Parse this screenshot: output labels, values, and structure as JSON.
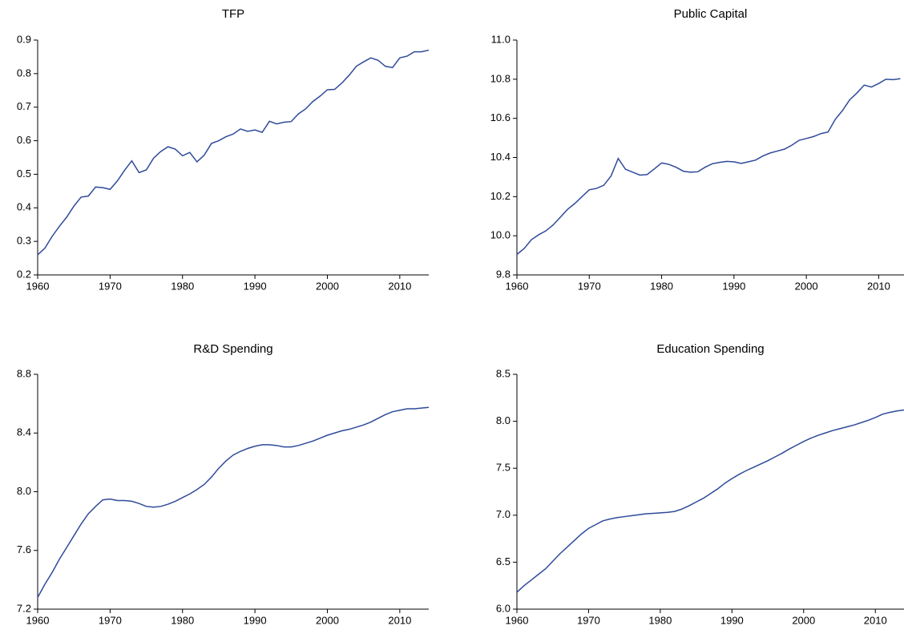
{
  "chart_data": [
    {
      "type": "line",
      "title": "TFP",
      "color": "#2f4a9a",
      "x": [
        1960,
        1961,
        1962,
        1963,
        1964,
        1965,
        1966,
        1967,
        1968,
        1969,
        1970,
        1971,
        1972,
        1973,
        1974,
        1975,
        1976,
        1977,
        1978,
        1979,
        1980,
        1981,
        1982,
        1983,
        1984,
        1985,
        1986,
        1987,
        1988,
        1989,
        1990,
        1991,
        1992,
        1993,
        1994,
        1995,
        1996,
        1997,
        1998,
        1999,
        2000,
        2001,
        2002,
        2003,
        2004,
        2005,
        2006,
        2007,
        2008,
        2009,
        2010,
        2011,
        2012,
        2013,
        2014
      ],
      "values": [
        0.26,
        0.28,
        0.315,
        0.345,
        0.372,
        0.405,
        0.432,
        0.435,
        0.462,
        0.46,
        0.455,
        0.48,
        0.512,
        0.54,
        0.505,
        0.513,
        0.548,
        0.568,
        0.582,
        0.575,
        0.555,
        0.565,
        0.537,
        0.557,
        0.592,
        0.6,
        0.612,
        0.62,
        0.635,
        0.628,
        0.632,
        0.625,
        0.658,
        0.65,
        0.655,
        0.657,
        0.68,
        0.695,
        0.717,
        0.733,
        0.752,
        0.753,
        0.772,
        0.795,
        0.822,
        0.835,
        0.847,
        0.84,
        0.822,
        0.818,
        0.847,
        0.852,
        0.865,
        0.865,
        0.87
      ],
      "xlim": [
        1960,
        2014
      ],
      "xticks": [
        1960,
        1970,
        1980,
        1990,
        2000,
        2010
      ],
      "ylim": [
        0.2,
        0.9
      ],
      "yticks": [
        0.2,
        0.3,
        0.4,
        0.5,
        0.6,
        0.7,
        0.8,
        0.9
      ]
    },
    {
      "type": "line",
      "title": "Public Capital",
      "color": "#2f4a9a",
      "x": [
        1960,
        1961,
        1962,
        1963,
        1964,
        1965,
        1966,
        1967,
        1968,
        1969,
        1970,
        1971,
        1972,
        1973,
        1974,
        1975,
        1976,
        1977,
        1978,
        1979,
        1980,
        1981,
        1982,
        1983,
        1984,
        1985,
        1986,
        1987,
        1988,
        1989,
        1990,
        1991,
        1992,
        1993,
        1994,
        1995,
        1996,
        1997,
        1998,
        1999,
        2000,
        2001,
        2002,
        2003,
        2004,
        2005,
        2006,
        2007,
        2008,
        2009,
        2010,
        2011,
        2012,
        2013
      ],
      "values": [
        9.905,
        9.935,
        9.98,
        10.005,
        10.025,
        10.055,
        10.095,
        10.135,
        10.165,
        10.2,
        10.235,
        10.242,
        10.258,
        10.305,
        10.395,
        10.34,
        10.325,
        10.31,
        10.313,
        10.342,
        10.372,
        10.365,
        10.35,
        10.33,
        10.325,
        10.327,
        10.35,
        10.368,
        10.375,
        10.38,
        10.378,
        10.37,
        10.378,
        10.387,
        10.408,
        10.423,
        10.433,
        10.443,
        10.463,
        10.488,
        10.497,
        10.507,
        10.522,
        10.53,
        10.595,
        10.64,
        10.695,
        10.73,
        10.77,
        10.76,
        10.778,
        10.8,
        10.798,
        10.803
      ],
      "xlim": [
        1960,
        2013.5
      ],
      "xticks": [
        1960,
        1970,
        1980,
        1990,
        2000,
        2010
      ],
      "ylim": [
        9.8,
        11.0
      ],
      "yticks": [
        9.8,
        {
          "value": 10.0,
          "label": "10.0"
        },
        10.2,
        10.4,
        10.6,
        10.8,
        {
          "value": 11.0,
          "label": "11.0"
        }
      ]
    },
    {
      "type": "line",
      "title": "R&D Spending",
      "color": "#2f4a9a",
      "x": [
        1960,
        1961,
        1962,
        1963,
        1964,
        1965,
        1966,
        1967,
        1968,
        1969,
        1970,
        1971,
        1972,
        1973,
        1974,
        1975,
        1976,
        1977,
        1978,
        1979,
        1980,
        1981,
        1982,
        1983,
        1984,
        1985,
        1986,
        1987,
        1988,
        1989,
        1990,
        1991,
        1992,
        1993,
        1994,
        1995,
        1996,
        1997,
        1998,
        1999,
        2000,
        2001,
        2002,
        2003,
        2004,
        2005,
        2006,
        2007,
        2008,
        2009,
        2010,
        2011,
        2012,
        2013,
        2014
      ],
      "values": [
        7.28,
        7.37,
        7.45,
        7.54,
        7.62,
        7.7,
        7.78,
        7.85,
        7.9,
        7.945,
        7.95,
        7.94,
        7.94,
        7.935,
        7.92,
        7.9,
        7.895,
        7.9,
        7.915,
        7.935,
        7.96,
        7.985,
        8.015,
        8.05,
        8.1,
        8.16,
        8.21,
        8.25,
        8.275,
        8.295,
        8.31,
        8.32,
        8.32,
        8.315,
        8.305,
        8.305,
        8.315,
        8.33,
        8.345,
        8.365,
        8.385,
        8.4,
        8.415,
        8.425,
        8.44,
        8.455,
        8.475,
        8.5,
        8.525,
        8.545,
        8.555,
        8.565,
        8.565,
        8.57,
        8.575
      ],
      "xlim": [
        1960,
        2014
      ],
      "xticks": [
        1960,
        1970,
        1980,
        1990,
        2000,
        2010
      ],
      "ylim": [
        7.2,
        8.8
      ],
      "yticks": [
        7.2,
        7.6,
        {
          "value": 8.0,
          "label": "8.0"
        },
        8.4,
        8.8
      ]
    },
    {
      "type": "line",
      "title": "Education Spending",
      "color": "#2f4a9a",
      "x": [
        1960,
        1961,
        1962,
        1963,
        1964,
        1965,
        1966,
        1967,
        1968,
        1969,
        1970,
        1971,
        1972,
        1973,
        1974,
        1975,
        1976,
        1977,
        1978,
        1979,
        1980,
        1981,
        1982,
        1983,
        1984,
        1985,
        1986,
        1987,
        1988,
        1989,
        1990,
        1991,
        1992,
        1993,
        1994,
        1995,
        1996,
        1997,
        1998,
        1999,
        2000,
        2001,
        2002,
        2003,
        2004,
        2005,
        2006,
        2007,
        2008,
        2009,
        2010,
        2011,
        2012,
        2013,
        2014
      ],
      "values": [
        6.18,
        6.25,
        6.31,
        6.37,
        6.43,
        6.51,
        6.59,
        6.66,
        6.73,
        6.8,
        6.86,
        6.9,
        6.94,
        6.96,
        6.975,
        6.985,
        6.995,
        7.005,
        7.015,
        7.02,
        7.025,
        7.03,
        7.04,
        7.065,
        7.1,
        7.14,
        7.18,
        7.23,
        7.28,
        7.34,
        7.39,
        7.435,
        7.475,
        7.51,
        7.545,
        7.58,
        7.62,
        7.66,
        7.705,
        7.745,
        7.785,
        7.82,
        7.85,
        7.875,
        7.9,
        7.92,
        7.94,
        7.96,
        7.985,
        8.01,
        8.04,
        8.075,
        8.095,
        8.11,
        8.12
      ],
      "xlim": [
        1960,
        2014
      ],
      "xticks": [
        1960,
        1970,
        1980,
        1990,
        2000,
        2010
      ],
      "ylim": [
        6.0,
        8.5
      ],
      "yticks": [
        {
          "value": 6.0,
          "label": "6.0"
        },
        6.5,
        {
          "value": 7.0,
          "label": "7.0"
        },
        7.5,
        {
          "value": 8.0,
          "label": "8.0"
        },
        8.5
      ]
    }
  ]
}
